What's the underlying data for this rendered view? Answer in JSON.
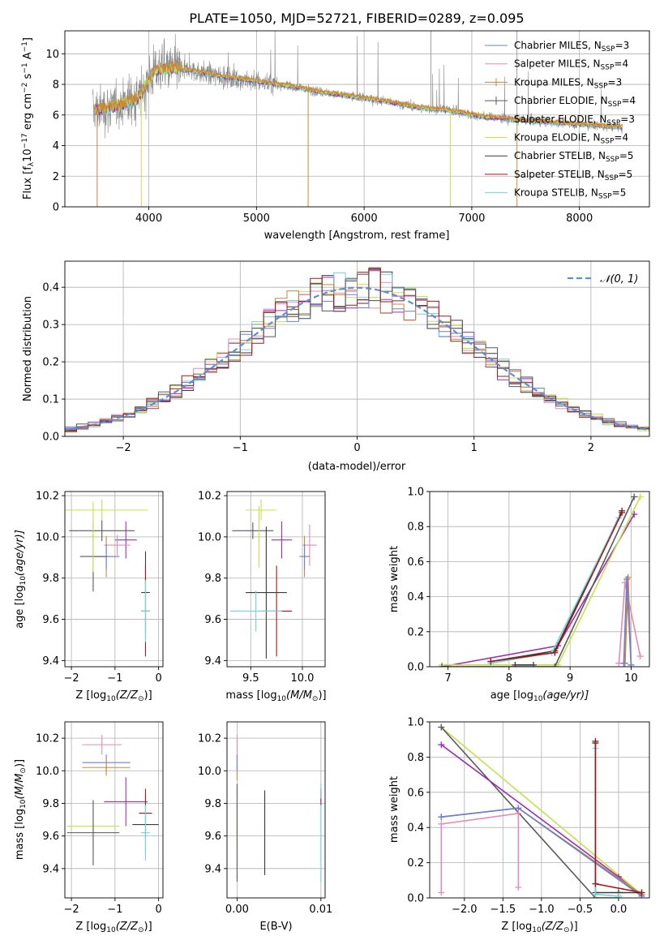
{
  "figure": {
    "title": "PLATE=1050, MJD=52721, FIBERID=0289, z=0.095"
  },
  "colors": {
    "Chabrier MILES": "#6a7fd8",
    "Salpeter MILES": "#e889b8",
    "Kroupa MILES": "#c8883a",
    "Chabrier ELODIE": "#585858",
    "Salpeter ELODIE": "#9b2fb5",
    "Kroupa ELODIE": "#c6e04a",
    "Chabrier STELIB": "#3a3a3a",
    "Salpeter STELIB": "#a01818",
    "Kroupa STELIB": "#6fd6dc",
    "data": "#8a8a8a",
    "normal": "#5b8fd6"
  },
  "chart_data": [
    {
      "id": "spectrum",
      "type": "line",
      "xlabel": "wavelength [Angstrom, rest frame]",
      "ylabel_main": "Flux [f",
      "ylabel_sub": "λ",
      "ylabel_rest": "10",
      "ylabel_exp1": "−17",
      "ylabel_units": " erg cm",
      "ylabel_exp2": "−2",
      "ylabel_s": " s",
      "ylabel_exp3": "−1",
      "ylabel_A": " A",
      "ylabel_exp4": "−1",
      "ylabel_end": "]",
      "xlim": [
        3220,
        8650
      ],
      "ylim": [
        0,
        11.5
      ],
      "xticks": [
        "4000",
        "5000",
        "6000",
        "7000",
        "8000"
      ],
      "xtick_values": [
        4000,
        5000,
        6000,
        7000,
        8000
      ],
      "yticks": [
        "0",
        "2",
        "4",
        "6",
        "8",
        "10"
      ],
      "ytick_values": [
        0,
        2,
        4,
        6,
        8,
        10
      ],
      "continuum": [
        [
          3500,
          6.3
        ],
        [
          3700,
          6.6
        ],
        [
          3900,
          7.1
        ],
        [
          4050,
          8.9
        ],
        [
          4200,
          9.1
        ],
        [
          4400,
          8.9
        ],
        [
          4700,
          8.5
        ],
        [
          5000,
          8.2
        ],
        [
          5300,
          7.9
        ],
        [
          5600,
          7.5
        ],
        [
          5900,
          7.2
        ],
        [
          6200,
          6.9
        ],
        [
          6500,
          6.5
        ],
        [
          6800,
          6.3
        ],
        [
          7100,
          5.9
        ],
        [
          7400,
          5.7
        ],
        [
          7800,
          5.5
        ],
        [
          8400,
          5.2
        ]
      ],
      "legend": [
        {
          "name": "Chabrier MILES",
          "nssp": "3"
        },
        {
          "name": "Salpeter MILES",
          "nssp": "4"
        },
        {
          "name": "Kroupa MILES",
          "nssp": "3"
        },
        {
          "name": "Chabrier ELODIE",
          "nssp": "4"
        },
        {
          "name": "Salpeter ELODIE",
          "nssp": "3"
        },
        {
          "name": "Kroupa ELODIE",
          "nssp": "4"
        },
        {
          "name": "Chabrier STELIB",
          "nssp": "5"
        },
        {
          "name": "Salpeter STELIB",
          "nssp": "5"
        },
        {
          "name": "Kroupa STELIB",
          "nssp": "5"
        }
      ],
      "legend_N": "N",
      "legend_sub": "SSP"
    },
    {
      "id": "residuals",
      "type": "histogram",
      "xlabel": "(data-model)/error",
      "ylabel": "Normed distribution",
      "xlim": [
        -2.5,
        2.5
      ],
      "ylim": [
        0,
        0.47
      ],
      "xticks": [
        "−2",
        "−1",
        "0",
        "1",
        "2"
      ],
      "xtick_values": [
        -2,
        -1,
        0,
        1,
        2
      ],
      "yticks": [
        "0.0",
        "0.1",
        "0.2",
        "0.3",
        "0.4"
      ],
      "ytick_values": [
        0,
        0.1,
        0.2,
        0.3,
        0.4
      ],
      "bin_width": 0.1,
      "legend_label": "𝒩(0, 1)",
      "legend_position": "top-right"
    },
    {
      "id": "age-Z",
      "type": "errorbar",
      "xlabel": "Z [log",
      "xlabel_sub": "10",
      "xlabel_end": "(Z/Z",
      "xlabel_sun": "⊙",
      "xlabel_close": ")]",
      "ylabel": "age  [log",
      "ylabel_sub": "10",
      "ylabel_end": "(age/yr)]",
      "xlim": [
        -2.15,
        0.1
      ],
      "ylim": [
        9.37,
        10.22
      ],
      "xticks": [
        "−2",
        "−1",
        "0"
      ],
      "xtick_values": [
        -2,
        -1,
        0
      ],
      "yticks": [
        "9.4",
        "9.6",
        "9.8",
        "10.0",
        "10.2"
      ],
      "ytick_values": [
        9.4,
        9.6,
        9.8,
        10.0,
        10.2
      ],
      "points": [
        {
          "model": "Kroupa ELODIE",
          "x": -1.3,
          "y": 10.13,
          "xerr": 1.05,
          "yerr": 0.05
        },
        {
          "model": "Chabrier ELODIE",
          "x": -1.3,
          "y": 10.03,
          "xerr": 0.75,
          "yerr": 0.05
        },
        {
          "model": "Salpeter ELODIE",
          "x": -0.75,
          "y": 9.985,
          "xerr": 0.25,
          "yerr": 0.09
        },
        {
          "model": "Salpeter MILES",
          "x": -0.95,
          "y": 9.96,
          "xerr": 0.3,
          "yerr": 0.05
        },
        {
          "model": "Kroupa MILES",
          "x": -1.2,
          "y": 9.905,
          "xerr": 0.3,
          "yerr": 0.1
        },
        {
          "model": "Chabrier MILES",
          "x": -1.2,
          "y": 9.905,
          "xerr": 0.3,
          "yerr": 0.06
        },
        {
          "model": "Chabrier ELODIE",
          "x": -1.5,
          "y": 9.905,
          "xerr": 0.3,
          "yerr": 0.17
        },
        {
          "model": "Kroupa ELODIE",
          "x": -1.5,
          "y": 10.0,
          "xerr": 0.1,
          "yerr": 0.17
        },
        {
          "model": "Chabrier STELIB",
          "x": -0.3,
          "y": 9.73,
          "xerr": 0.1,
          "yerr": 0.2
        },
        {
          "model": "Salpeter STELIB",
          "x": -0.3,
          "y": 9.64,
          "xerr": 0.1,
          "yerr": 0.22
        },
        {
          "model": "Kroupa STELIB",
          "x": -0.3,
          "y": 9.64,
          "xerr": 0.1,
          "yerr": 0.15
        }
      ]
    },
    {
      "id": "age-mass",
      "type": "errorbar",
      "xlabel": "mass [log",
      "xlabel_sub": "10",
      "xlabel_end": "(M/M",
      "xlabel_sun": "⊙",
      "xlabel_close": ")]",
      "xlim": [
        9.27,
        10.22
      ],
      "ylim": [
        9.37,
        10.22
      ],
      "xticks": [
        "9.5",
        "10.0"
      ],
      "xtick_values": [
        9.5,
        10.0
      ],
      "yticks": [
        "9.4",
        "9.6",
        "9.8",
        "10.0",
        "10.2"
      ],
      "ytick_values": [
        9.4,
        9.6,
        9.8,
        10.0,
        10.2
      ],
      "points": [
        {
          "model": "Kroupa ELODIE",
          "x": 9.6,
          "y": 10.13,
          "xerr": 0.15,
          "yerr": 0.05
        },
        {
          "model": "Chabrier ELODIE",
          "x": 9.52,
          "y": 10.03,
          "xerr": 0.2,
          "yerr": 0.04
        },
        {
          "model": "Salpeter ELODIE",
          "x": 9.8,
          "y": 9.985,
          "xerr": 0.1,
          "yerr": 0.09
        },
        {
          "model": "Salpeter MILES",
          "x": 10.07,
          "y": 9.96,
          "xerr": 0.07,
          "yerr": 0.1
        },
        {
          "model": "Kroupa MILES",
          "x": 10.02,
          "y": 9.905,
          "xerr": 0.05,
          "yerr": 0.1
        },
        {
          "model": "Chabrier MILES",
          "x": 10.02,
          "y": 9.905,
          "xerr": 0.04,
          "yerr": 0.06
        },
        {
          "model": "Kroupa ELODIE",
          "x": 9.58,
          "y": 10.0,
          "xerr": 0.02,
          "yerr": 0.15
        },
        {
          "model": "Chabrier STELIB",
          "x": 9.65,
          "y": 9.73,
          "xerr": 0.2,
          "yerr": 0.32
        },
        {
          "model": "Salpeter STELIB",
          "x": 9.75,
          "y": 9.64,
          "xerr": 0.15,
          "yerr": 0.22
        },
        {
          "model": "Kroupa STELIB",
          "x": 9.55,
          "y": 9.64,
          "xerr": 0.25,
          "yerr": 0.1
        }
      ]
    },
    {
      "id": "weight-age",
      "type": "line",
      "xlabel": "age  [log",
      "xlabel_sub": "10",
      "xlabel_end": "(age/yr)]",
      "ylabel": "mass weight",
      "xlim": [
        6.7,
        10.3
      ],
      "ylim": [
        0,
        1
      ],
      "xticks": [
        "7",
        "8",
        "9",
        "10"
      ],
      "xtick_values": [
        7,
        8,
        9,
        10
      ],
      "yticks": [
        "0.0",
        "0.2",
        "0.4",
        "0.6",
        "0.8",
        "1.0"
      ],
      "ytick_values": [
        0,
        0.2,
        0.4,
        0.6,
        0.8,
        1.0
      ],
      "series": [
        {
          "model": "Salpeter ELODIE",
          "x": [
            6.9,
            8.8,
            10.05
          ],
          "y": [
            0.0,
            0.12,
            0.87
          ]
        },
        {
          "model": "Kroupa ELODIE",
          "x": [
            6.9,
            8.8,
            10.15
          ],
          "y": [
            0.01,
            0.01,
            0.97
          ]
        },
        {
          "model": "Chabrier ELODIE",
          "x": [
            6.9,
            8.75,
            10.05
          ],
          "y": [
            0.0,
            0.0,
            0.97
          ]
        },
        {
          "model": "Chabrier STELIB",
          "x": [
            7.7,
            8.75,
            9.85
          ],
          "y": [
            0.03,
            0.09,
            0.89
          ]
        },
        {
          "model": "Kroupa STELIB",
          "x": [
            7.7,
            8.7,
            9.8
          ],
          "y": [
            0.02,
            0.08,
            0.85
          ]
        },
        {
          "model": "Salpeter STELIB",
          "x": [
            7.7,
            8.75,
            9.85
          ],
          "y": [
            0.03,
            0.08,
            0.88
          ]
        },
        {
          "model": "Salpeter MILES",
          "x": [
            9.8,
            9.9,
            10.15
          ],
          "y": [
            0.02,
            0.48,
            0.06
          ]
        },
        {
          "model": "Kroupa MILES",
          "x": [
            9.9,
            9.95,
            10.0
          ],
          "y": [
            0.02,
            0.51,
            0.01
          ]
        },
        {
          "model": "Chabrier MILES",
          "x": [
            9.88,
            9.93,
            10.0
          ],
          "y": [
            0.02,
            0.5,
            0.01
          ]
        },
        {
          "model": "Chabrier STELIB",
          "x": [
            8.1,
            8.4
          ],
          "y": [
            0.01,
            0.01
          ]
        }
      ]
    },
    {
      "id": "mass-Z",
      "type": "errorbar",
      "xlabel": "Z [log",
      "xlabel_sub": "10",
      "xlabel_end": "(Z/Z",
      "xlabel_sun": "⊙",
      "xlabel_close": ")]",
      "ylabel": "mass [log",
      "ylabel_sub": "10",
      "ylabel_end": "(M/M",
      "ylabel_sun": "⊙",
      "ylabel_close": ")]",
      "xlim": [
        -2.15,
        0.1
      ],
      "ylim": [
        9.22,
        10.3
      ],
      "xticks": [
        "−2",
        "−1",
        "0"
      ],
      "xtick_values": [
        -2,
        -1,
        0
      ],
      "yticks": [
        "9.4",
        "9.6",
        "9.8",
        "10.0",
        "10.2"
      ],
      "ytick_values": [
        9.4,
        9.6,
        9.8,
        10.0,
        10.2
      ],
      "points": [
        {
          "model": "Salpeter MILES",
          "x": -1.3,
          "y": 10.16,
          "xerr": 0.45,
          "yerr": 0.06
        },
        {
          "model": "Chabrier MILES",
          "x": -1.2,
          "y": 10.05,
          "xerr": 0.55,
          "yerr": 0.05
        },
        {
          "model": "Kroupa MILES",
          "x": -1.2,
          "y": 10.02,
          "xerr": 0.55,
          "yerr": 0.05
        },
        {
          "model": "Salpeter ELODIE",
          "x": -0.75,
          "y": 9.81,
          "xerr": 0.5,
          "yerr": 0.15
        },
        {
          "model": "Kroupa ELODIE",
          "x": -1.5,
          "y": 9.66,
          "xerr": 0.6,
          "yerr": 0.15
        },
        {
          "model": "Chabrier ELODIE",
          "x": -1.5,
          "y": 9.62,
          "xerr": 0.6,
          "yerr": 0.2
        },
        {
          "model": "Chabrier STELIB",
          "x": -0.3,
          "y": 9.67,
          "xerr": 0.3,
          "yerr": 0.18
        },
        {
          "model": "Salpeter STELIB",
          "x": -0.3,
          "y": 9.74,
          "xerr": 0.15,
          "yerr": 0.15
        },
        {
          "model": "Kroupa STELIB",
          "x": -0.3,
          "y": 9.62,
          "xerr": 0.1,
          "yerr": 0.17
        }
      ]
    },
    {
      "id": "mass-EBV",
      "type": "errorbar",
      "xlabel": "E(B-V)",
      "xlim": [
        -0.0012,
        0.0105
      ],
      "ylim": [
        9.22,
        10.3
      ],
      "xticks": [
        "0.00",
        "0.01"
      ],
      "xtick_values": [
        0,
        0.01
      ],
      "yticks": [
        "9.4",
        "9.6",
        "9.8",
        "10.0",
        "10.2"
      ],
      "ytick_values": [
        9.4,
        9.6,
        9.8,
        10.0,
        10.2
      ],
      "points": [
        {
          "model": "Salpeter MILES",
          "x": 0.0,
          "y": 10.16,
          "xerr": 0,
          "yerr": 0.06
        },
        {
          "model": "Kroupa MILES",
          "x": 0.0,
          "y": 10.02,
          "xerr": 0,
          "yerr": 0.08
        },
        {
          "model": "Chabrier MILES",
          "x": 0.0,
          "y": 10.05,
          "xerr": 0,
          "yerr": 0.05
        },
        {
          "model": "Kroupa ELODIE",
          "x": 0.0,
          "y": 9.66,
          "xerr": 0,
          "yerr": 0.15
        },
        {
          "model": "Chabrier ELODIE",
          "x": 0.0,
          "y": 9.62,
          "xerr": 0,
          "yerr": 0.3
        },
        {
          "model": "Chabrier STELIB",
          "x": 0.0033,
          "y": 9.62,
          "xerr": 0,
          "yerr": 0.26
        },
        {
          "model": "Salpeter STELIB",
          "x": 0.01,
          "y": 9.84,
          "xerr": 0,
          "yerr": 0.05
        },
        {
          "model": "Kroupa STELIB",
          "x": 0.01,
          "y": 9.62,
          "xerr": 0,
          "yerr": 0.3
        },
        {
          "model": "Salpeter ELODIE",
          "x": 0.01,
          "y": 9.81,
          "xerr": 0,
          "yerr": 0.02
        }
      ]
    },
    {
      "id": "weight-Z",
      "type": "line",
      "xlabel": "Z [log",
      "xlabel_sub": "10",
      "xlabel_end": "(Z/Z",
      "xlabel_sun": "⊙",
      "xlabel_close": ")]",
      "ylabel": "mass weight",
      "xlim": [
        -2.45,
        0.4
      ],
      "ylim": [
        0,
        1
      ],
      "xticks": [
        "−2.0",
        "−1.5",
        "−1.0",
        "−0.5",
        "0.0"
      ],
      "xtick_values": [
        -2.0,
        -1.5,
        -1.0,
        -0.5,
        0.0
      ],
      "yticks": [
        "0.0",
        "0.2",
        "0.4",
        "0.6",
        "0.8",
        "1.0"
      ],
      "ytick_values": [
        0,
        0.2,
        0.4,
        0.6,
        0.8,
        1.0
      ],
      "series": [
        {
          "model": "Kroupa ELODIE",
          "x": [
            -2.3,
            0.3
          ],
          "y": [
            0.97,
            0.02
          ]
        },
        {
          "model": "Chabrier ELODIE",
          "x": [
            -2.3,
            -0.3,
            0.0
          ],
          "y": [
            0.97,
            0.0,
            0.0
          ]
        },
        {
          "model": "Salpeter ELODIE",
          "x": [
            -2.3,
            0.0,
            0.3
          ],
          "y": [
            0.87,
            0.12,
            0.01
          ]
        },
        {
          "model": "Kroupa MILES",
          "x": [
            -2.3,
            -1.3,
            0.3
          ],
          "y": [
            0.46,
            0.51,
            0.02
          ]
        },
        {
          "model": "Chabrier MILES",
          "x": [
            -2.3,
            -1.3,
            0.3
          ],
          "y": [
            0.46,
            0.51,
            0.01
          ]
        },
        {
          "model": "Salpeter MILES",
          "x": [
            -2.3,
            -2.3,
            -1.3,
            -1.3
          ],
          "y": [
            0.03,
            0.42,
            0.48,
            0.06
          ]
        },
        {
          "model": "Chabrier STELIB",
          "x": [
            -0.3,
            -0.3,
            0.0,
            0.3
          ],
          "y": [
            0.89,
            0.03,
            0.03,
            0.03
          ]
        },
        {
          "model": "Kroupa STELIB",
          "x": [
            -0.3,
            -0.3,
            0.0
          ],
          "y": [
            0.85,
            0.02,
            0.01
          ]
        },
        {
          "model": "Salpeter STELIB",
          "x": [
            -0.3,
            -0.3,
            0.3
          ],
          "y": [
            0.88,
            0.08,
            0.03
          ]
        }
      ]
    }
  ]
}
